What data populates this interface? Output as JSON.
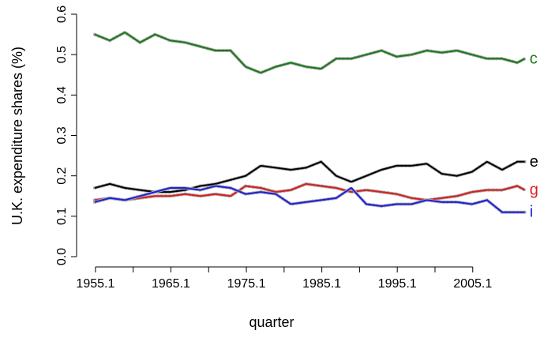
{
  "chart_data": {
    "type": "line",
    "xlabel": "quarter",
    "ylabel": "U.K. expenditure shares (%)",
    "x": [
      1955,
      1957,
      1959,
      1961,
      1963,
      1965,
      1967,
      1969,
      1971,
      1973,
      1975,
      1977,
      1979,
      1981,
      1983,
      1985,
      1987,
      1989,
      1991,
      1993,
      1995,
      1997,
      1999,
      2001,
      2003,
      2005,
      2007,
      2009,
      2011,
      2012
    ],
    "series": [
      {
        "name": "c",
        "color": "#1a7a1a",
        "values": [
          0.55,
          0.535,
          0.555,
          0.53,
          0.55,
          0.535,
          0.53,
          0.52,
          0.51,
          0.51,
          0.47,
          0.455,
          0.47,
          0.48,
          0.47,
          0.465,
          0.49,
          0.49,
          0.5,
          0.51,
          0.495,
          0.5,
          0.51,
          0.505,
          0.51,
          0.5,
          0.49,
          0.49,
          0.48,
          0.49
        ]
      },
      {
        "name": "e",
        "color": "#000000",
        "values": [
          0.17,
          0.18,
          0.17,
          0.165,
          0.16,
          0.16,
          0.165,
          0.175,
          0.18,
          0.19,
          0.2,
          0.225,
          0.22,
          0.215,
          0.22,
          0.235,
          0.2,
          0.185,
          0.2,
          0.215,
          0.225,
          0.225,
          0.23,
          0.205,
          0.2,
          0.21,
          0.235,
          0.215,
          0.235,
          0.235
        ]
      },
      {
        "name": "g",
        "color": "#d62020",
        "values": [
          0.14,
          0.145,
          0.14,
          0.145,
          0.15,
          0.15,
          0.155,
          0.15,
          0.155,
          0.15,
          0.175,
          0.17,
          0.16,
          0.165,
          0.18,
          0.175,
          0.17,
          0.16,
          0.165,
          0.16,
          0.155,
          0.145,
          0.14,
          0.145,
          0.15,
          0.16,
          0.165,
          0.165,
          0.175,
          0.165
        ]
      },
      {
        "name": "i",
        "color": "#1f1fe0",
        "values": [
          0.135,
          0.145,
          0.14,
          0.15,
          0.16,
          0.17,
          0.17,
          0.165,
          0.175,
          0.17,
          0.155,
          0.16,
          0.155,
          0.13,
          0.135,
          0.14,
          0.145,
          0.17,
          0.13,
          0.125,
          0.13,
          0.13,
          0.14,
          0.135,
          0.135,
          0.13,
          0.14,
          0.11,
          0.11,
          0.11
        ]
      }
    ],
    "xlim": [
      1952.6,
      2013.6
    ],
    "xticks": [
      1955.1,
      1965.1,
      1975.1,
      1985.1,
      1995.1,
      2005.1
    ],
    "xminor_ticks": [
      1960.1,
      1970.1,
      1980.1,
      1990.1,
      2000.1
    ],
    "ylim": [
      0,
      0.6
    ],
    "yticks": [
      {
        "value": 0,
        "label": "0.0"
      },
      0.1,
      0.2,
      0.3,
      0.4,
      0.5,
      0.6
    ]
  }
}
